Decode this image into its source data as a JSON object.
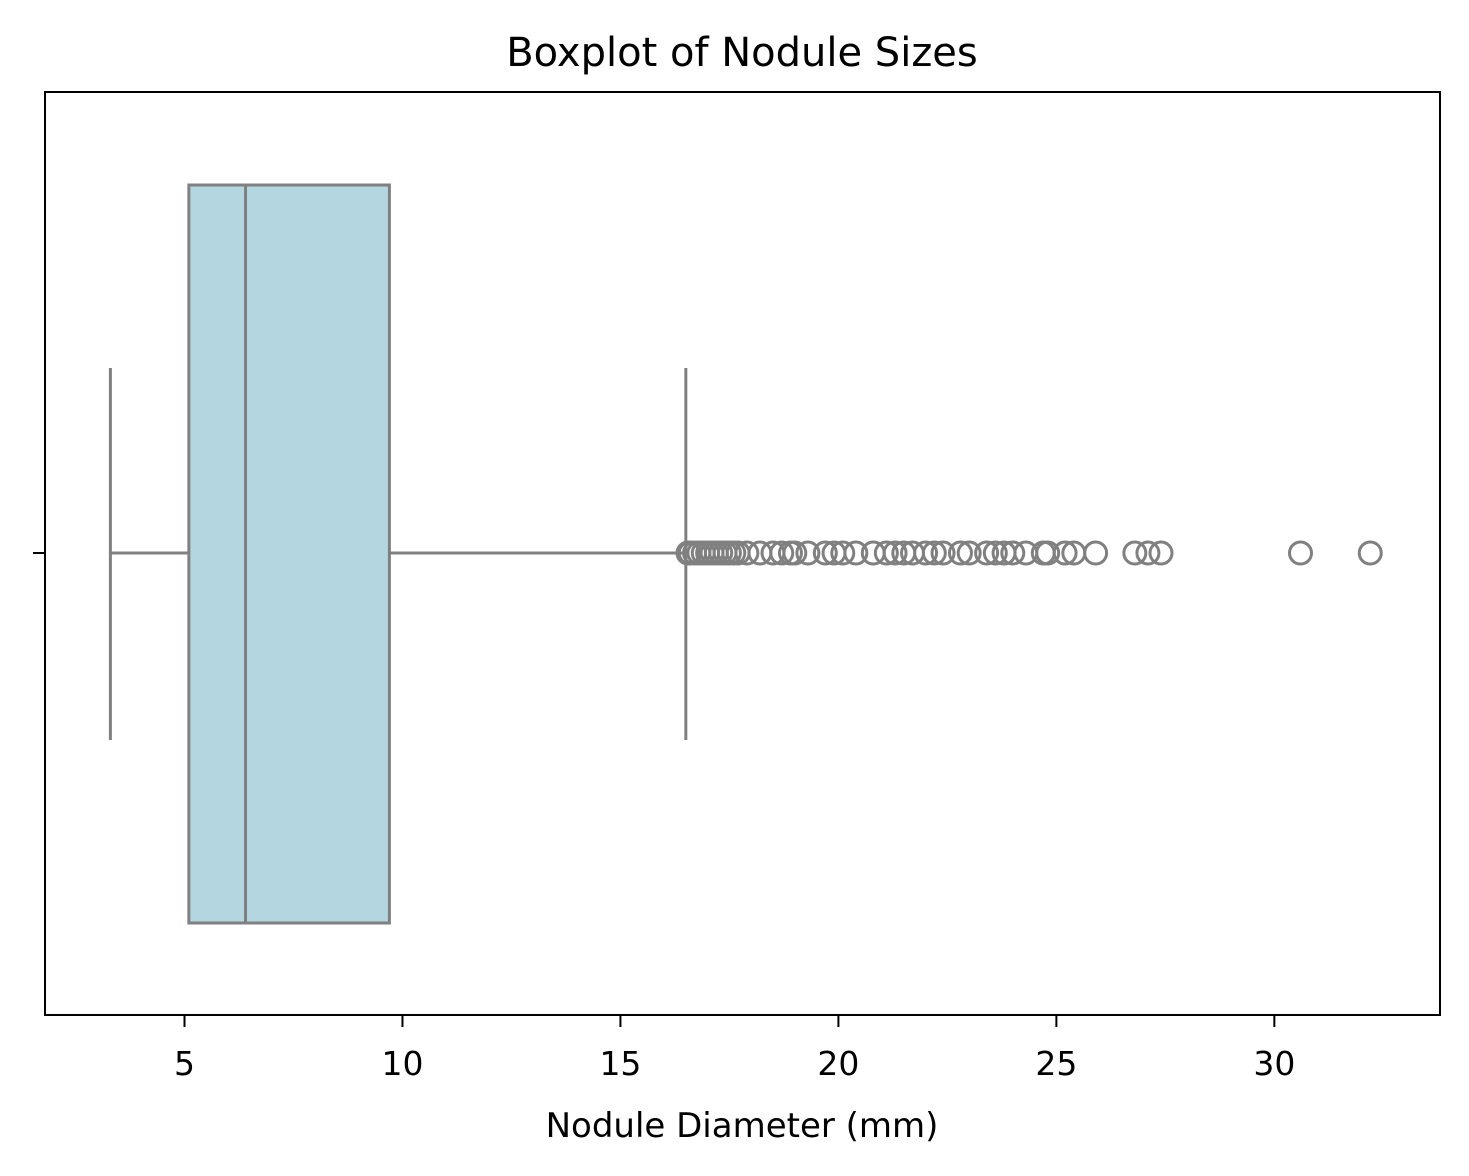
{
  "chart_data": {
    "type": "boxplot",
    "title": "Boxplot of Nodule Sizes",
    "xlabel": "Nodule Diameter (mm)",
    "ylabel": "",
    "xlim": [
      1.8,
      33.8
    ],
    "xticks": [
      5,
      10,
      15,
      20,
      25,
      30
    ],
    "xtick_labels": [
      "5",
      "10",
      "15",
      "20",
      "25",
      "30"
    ],
    "orientation": "horizontal",
    "grid": false,
    "box": {
      "whisker_low": 3.3,
      "q1": 5.1,
      "median": 6.4,
      "q3": 9.7,
      "whisker_high": 16.5
    },
    "outliers": [
      16.55,
      16.6,
      16.7,
      16.8,
      16.9,
      17.0,
      17.1,
      17.2,
      17.3,
      17.4,
      17.5,
      17.6,
      17.7,
      17.9,
      18.2,
      18.5,
      18.7,
      18.9,
      19.0,
      19.3,
      19.7,
      19.9,
      20.1,
      20.4,
      20.8,
      21.1,
      21.3,
      21.5,
      21.7,
      22.0,
      22.2,
      22.4,
      22.8,
      23.0,
      23.4,
      23.6,
      23.8,
      24.0,
      24.3,
      24.7,
      24.8,
      25.2,
      25.4,
      25.9,
      26.8,
      27.1,
      27.4,
      30.6,
      32.2
    ],
    "colors": {
      "box_fill": "#b4d6e0",
      "line": "#808080",
      "outlier_edge": "#808080",
      "axes": "#000000"
    }
  }
}
